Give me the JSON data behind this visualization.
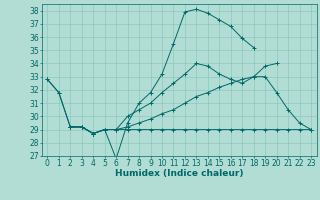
{
  "xlabel": "Humidex (Indice chaleur)",
  "bg_color": "#b2ddd4",
  "line_color": "#006868",
  "grid_color": "#8ec8c0",
  "ylim": [
    27,
    38.5
  ],
  "yticks": [
    27,
    28,
    29,
    30,
    31,
    32,
    33,
    34,
    35,
    36,
    37,
    38
  ],
  "xlim": [
    -0.5,
    23.5
  ],
  "xticks": [
    0,
    1,
    2,
    3,
    4,
    5,
    6,
    7,
    8,
    9,
    10,
    11,
    12,
    13,
    14,
    15,
    16,
    17,
    18,
    19,
    20,
    21,
    22,
    23
  ],
  "lines": [
    {
      "x": [
        0,
        1,
        2,
        3,
        4,
        5,
        6,
        7,
        8,
        9,
        10,
        11,
        12,
        13,
        14,
        15,
        16,
        17,
        18,
        19,
        20
      ],
      "y": [
        32.8,
        31.8,
        29.2,
        29.2,
        28.7,
        29.0,
        26.8,
        29.5,
        31.0,
        31.8,
        33.2,
        35.5,
        37.9,
        38.1,
        37.8,
        37.3,
        36.8,
        35.9,
        35.2,
        null,
        null
      ]
    },
    {
      "x": [
        0,
        1,
        2,
        3,
        4,
        5,
        6,
        7,
        8,
        9,
        10,
        11,
        12,
        13,
        14,
        15,
        16,
        17,
        18,
        19,
        20
      ],
      "y": [
        32.8,
        31.8,
        29.2,
        29.2,
        28.7,
        29.0,
        29.0,
        30.0,
        30.5,
        31.0,
        31.8,
        32.5,
        33.2,
        34.0,
        33.8,
        33.2,
        32.8,
        32.5,
        33.0,
        33.8,
        34.0
      ]
    },
    {
      "x": [
        2,
        3,
        4,
        5,
        6,
        7,
        8,
        9,
        10,
        11,
        12,
        13,
        14,
        15,
        16,
        17,
        18,
        19,
        20,
        21,
        22,
        23
      ],
      "y": [
        29.2,
        29.2,
        28.7,
        29.0,
        29.0,
        29.2,
        29.5,
        29.8,
        30.2,
        30.5,
        31.0,
        31.5,
        31.8,
        32.2,
        32.5,
        32.8,
        33.0,
        33.0,
        31.8,
        30.5,
        29.5,
        29.0
      ]
    },
    {
      "x": [
        2,
        3,
        4,
        5,
        6,
        7,
        8,
        9,
        10,
        11,
        12,
        13,
        14,
        15,
        16,
        17,
        18,
        19,
        20,
        21,
        22,
        23
      ],
      "y": [
        29.2,
        29.2,
        28.7,
        29.0,
        29.0,
        29.0,
        29.0,
        29.0,
        29.0,
        29.0,
        29.0,
        29.0,
        29.0,
        29.0,
        29.0,
        29.0,
        29.0,
        29.0,
        29.0,
        29.0,
        29.0,
        29.0
      ]
    }
  ],
  "xlabel_fontsize": 6.5,
  "tick_fontsize": 5.5
}
